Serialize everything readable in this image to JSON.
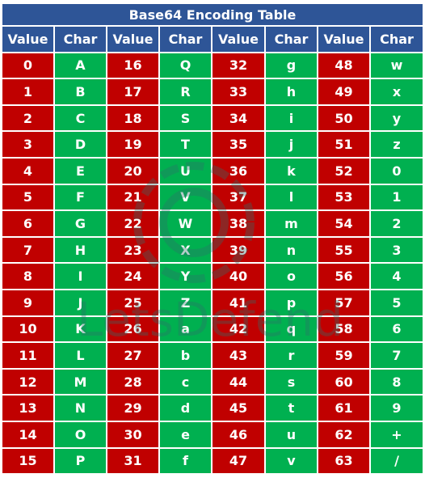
{
  "title": "Base64 Encoding Table",
  "headers": [
    "Value",
    "Char",
    "Value",
    "Char",
    "Value",
    "Char",
    "Value",
    "Char"
  ],
  "watermark_text": "LetsDefend",
  "colors": {
    "header": "#2e5597",
    "value_cell": "#c00000",
    "char_cell": "#00b050",
    "text": "#ffffff"
  },
  "rows": [
    [
      "0",
      "A",
      "16",
      "Q",
      "32",
      "g",
      "48",
      "w"
    ],
    [
      "1",
      "B",
      "17",
      "R",
      "33",
      "h",
      "49",
      "x"
    ],
    [
      "2",
      "C",
      "18",
      "S",
      "34",
      "i",
      "50",
      "y"
    ],
    [
      "3",
      "D",
      "19",
      "T",
      "35",
      "j",
      "51",
      "z"
    ],
    [
      "4",
      "E",
      "20",
      "U",
      "36",
      "k",
      "52",
      "0"
    ],
    [
      "5",
      "F",
      "21",
      "V",
      "37",
      "l",
      "53",
      "1"
    ],
    [
      "6",
      "G",
      "22",
      "W",
      "38",
      "m",
      "54",
      "2"
    ],
    [
      "7",
      "H",
      "23",
      "X",
      "39",
      "n",
      "55",
      "3"
    ],
    [
      "8",
      "I",
      "24",
      "Y",
      "40",
      "o",
      "56",
      "4"
    ],
    [
      "9",
      "J",
      "25",
      "Z",
      "41",
      "p",
      "57",
      "5"
    ],
    [
      "10",
      "K",
      "26",
      "a",
      "42",
      "q",
      "58",
      "6"
    ],
    [
      "11",
      "L",
      "27",
      "b",
      "43",
      "r",
      "59",
      "7"
    ],
    [
      "12",
      "M",
      "28",
      "c",
      "44",
      "s",
      "60",
      "8"
    ],
    [
      "13",
      "N",
      "29",
      "d",
      "45",
      "t",
      "61",
      "9"
    ],
    [
      "14",
      "O",
      "30",
      "e",
      "46",
      "u",
      "62",
      "+"
    ],
    [
      "15",
      "P",
      "31",
      "f",
      "47",
      "v",
      "63",
      "/"
    ]
  ]
}
